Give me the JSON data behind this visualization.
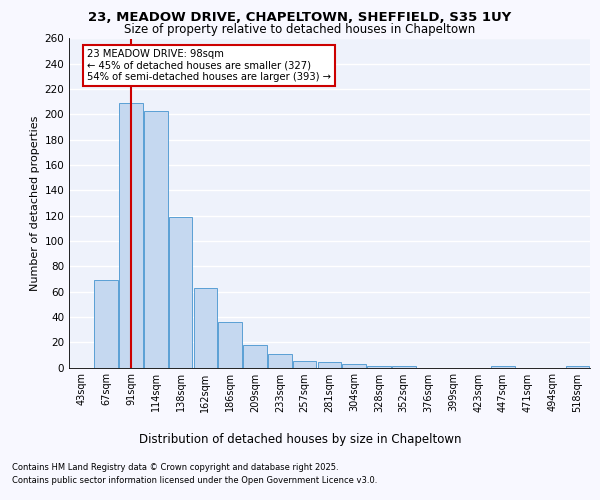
{
  "title1": "23, MEADOW DRIVE, CHAPELTOWN, SHEFFIELD, S35 1UY",
  "title2": "Size of property relative to detached houses in Chapeltown",
  "xlabel": "Distribution of detached houses by size in Chapeltown",
  "ylabel": "Number of detached properties",
  "categories": [
    "43sqm",
    "67sqm",
    "91sqm",
    "114sqm",
    "138sqm",
    "162sqm",
    "186sqm",
    "209sqm",
    "233sqm",
    "257sqm",
    "281sqm",
    "304sqm",
    "328sqm",
    "352sqm",
    "376sqm",
    "399sqm",
    "423sqm",
    "447sqm",
    "471sqm",
    "494sqm",
    "518sqm"
  ],
  "values": [
    0,
    69,
    209,
    203,
    119,
    63,
    36,
    18,
    11,
    5,
    4,
    3,
    1,
    1,
    0,
    0,
    0,
    1,
    0,
    0,
    1
  ],
  "bar_color": "#c5d8f0",
  "bar_edge_color": "#5a9fd4",
  "vline_x": 2,
  "vline_color": "#cc0000",
  "annotation_text": "23 MEADOW DRIVE: 98sqm\n← 45% of detached houses are smaller (327)\n54% of semi-detached houses are larger (393) →",
  "annotation_box_color": "#ffffff",
  "annotation_box_edge": "#cc0000",
  "ylim": [
    0,
    260
  ],
  "yticks": [
    0,
    20,
    40,
    60,
    80,
    100,
    120,
    140,
    160,
    180,
    200,
    220,
    240,
    260
  ],
  "bg_color": "#eef2fb",
  "grid_color": "#ffffff",
  "fig_bg_color": "#f8f8ff",
  "footer1": "Contains HM Land Registry data © Crown copyright and database right 2025.",
  "footer2": "Contains public sector information licensed under the Open Government Licence v3.0."
}
